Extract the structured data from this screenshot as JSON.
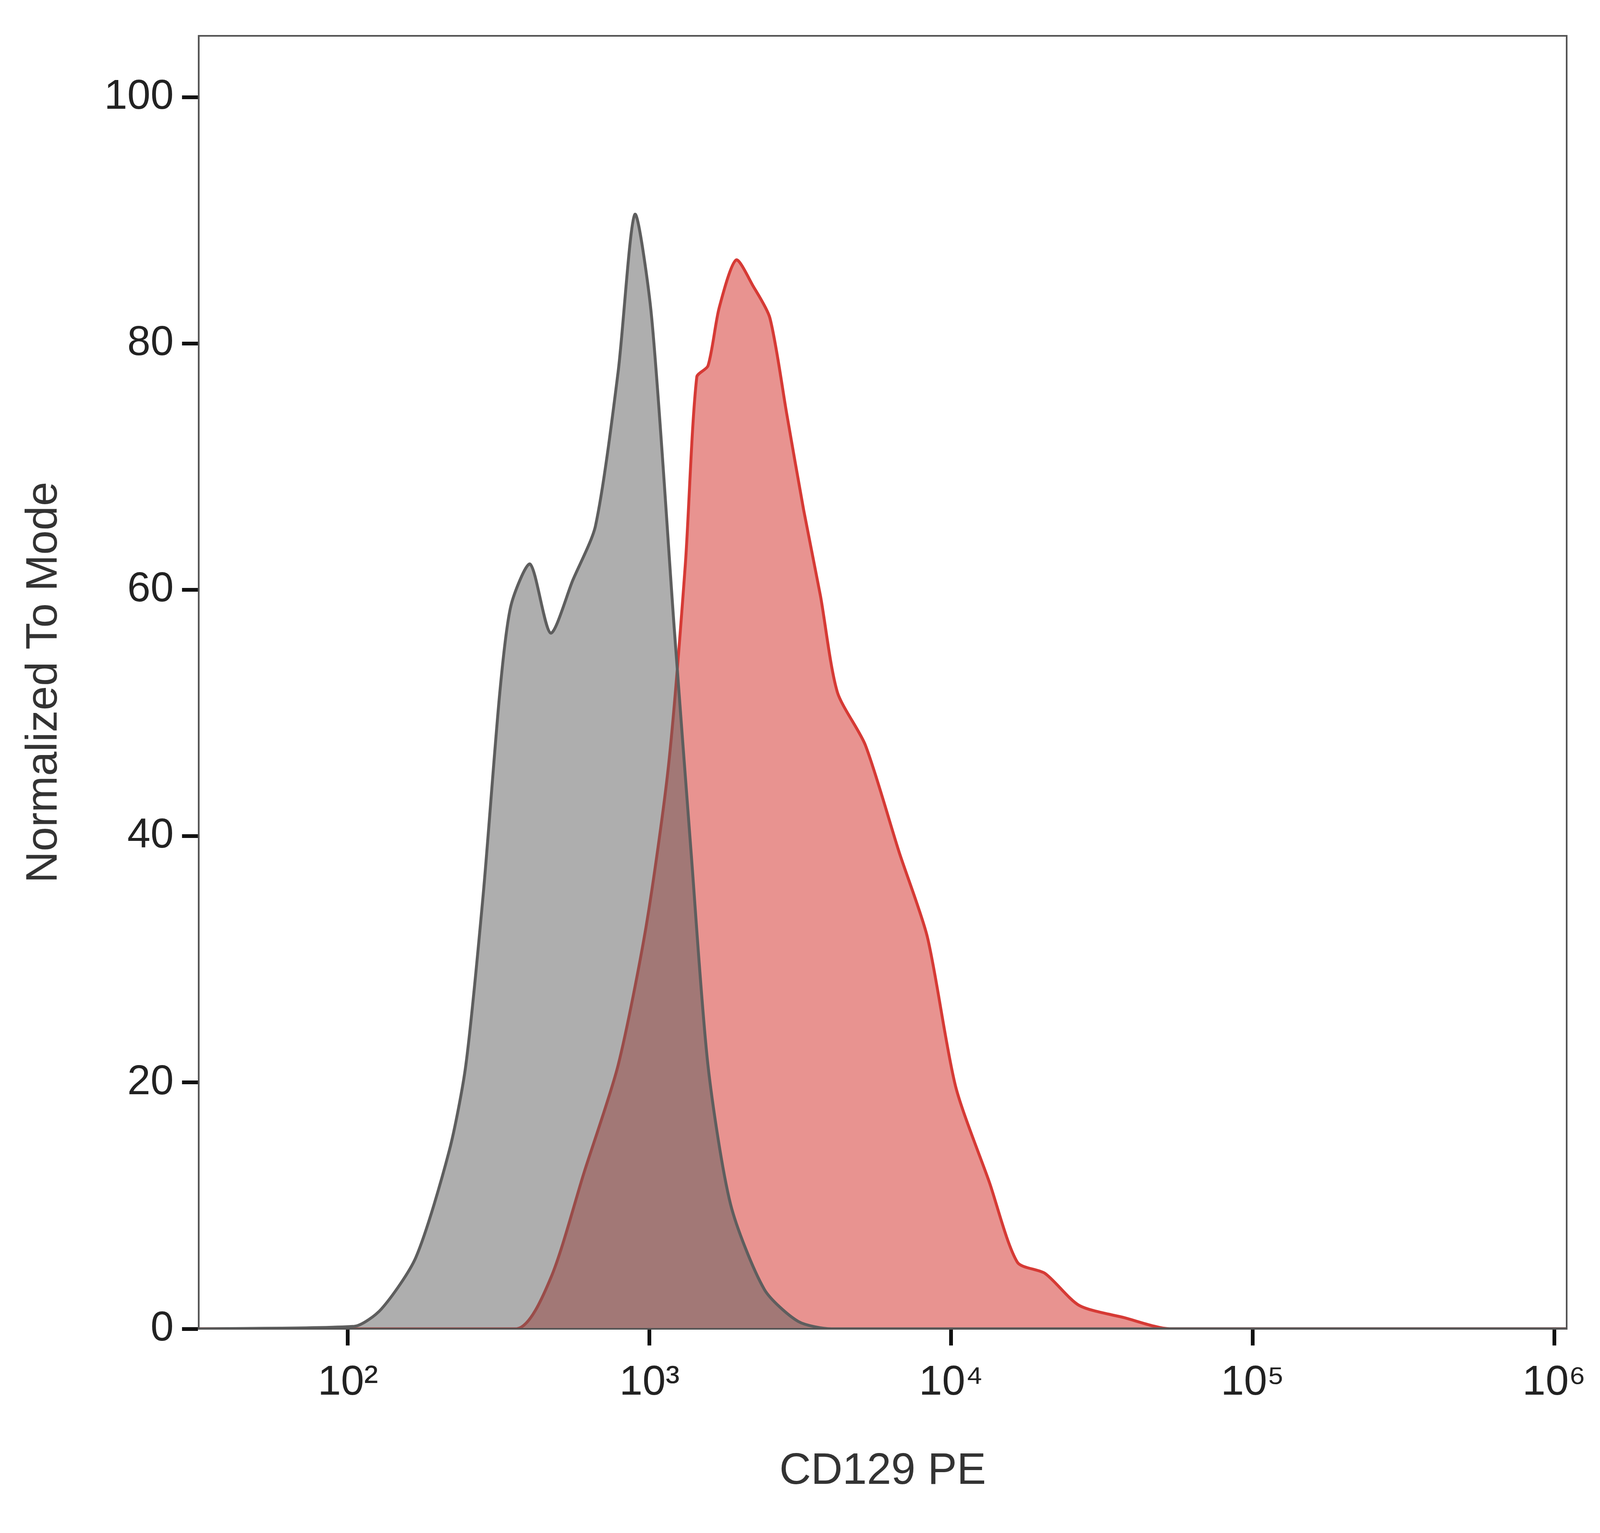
{
  "chart_data": {
    "type": "area",
    "x_label": "CD129 PE",
    "y_label": "Normalized To Mode",
    "log": "x",
    "grid": false,
    "xlim": [
      32,
      1100000
    ],
    "xticks": [
      {
        "value": 100,
        "label": "10²"
      },
      {
        "value": 1000,
        "label": "10³"
      },
      {
        "value": 10000,
        "label": "10⁴"
      },
      {
        "value": 100000,
        "label": "10⁵"
      },
      {
        "value": 1000000,
        "label": "10⁶"
      }
    ],
    "ylim": [
      0,
      105
    ],
    "yticks": [
      0,
      20,
      40,
      60,
      80,
      100
    ],
    "series": [
      {
        "color": "#5e5e5e",
        "x": [
          32,
          105,
          129,
          168,
          217,
          246,
          281,
          319,
          347,
          402,
          470,
          557,
          662,
          787,
          894,
          1017,
          1208,
          1374,
          1563,
          1858,
          2404,
          3113,
          4018,
          1100000
        ],
        "values": [
          0,
          0.2,
          1.6,
          5.8,
          14.5,
          21.4,
          35.3,
          51.7,
          58.7,
          62.1,
          56.5,
          60.8,
          65.2,
          77.7,
          90.5,
          82.1,
          56.9,
          38.7,
          21.4,
          10.1,
          3.2,
          0.6,
          0,
          0
        ]
      },
      {
        "color": "#d63a35",
        "x": [
          32,
          363,
          470,
          607,
          787,
          975,
          1156,
          1315,
          1435,
          1563,
          1702,
          1937,
          2204,
          2507,
          2852,
          3245,
          3691,
          4198,
          5199,
          6730,
          8350,
          10350,
          13400,
          16600,
          20500,
          26600,
          37600,
          53000,
          1100000
        ],
        "values": [
          0,
          0,
          4.1,
          12.7,
          21.4,
          32.7,
          45.7,
          62.1,
          77.3,
          78.2,
          82.9,
          86.8,
          84.7,
          82.1,
          74.3,
          66.5,
          59.5,
          51.7,
          47.4,
          38.7,
          31.8,
          19.7,
          11.9,
          5.4,
          4.5,
          1.9,
          0.9,
          0,
          0
        ]
      }
    ]
  }
}
